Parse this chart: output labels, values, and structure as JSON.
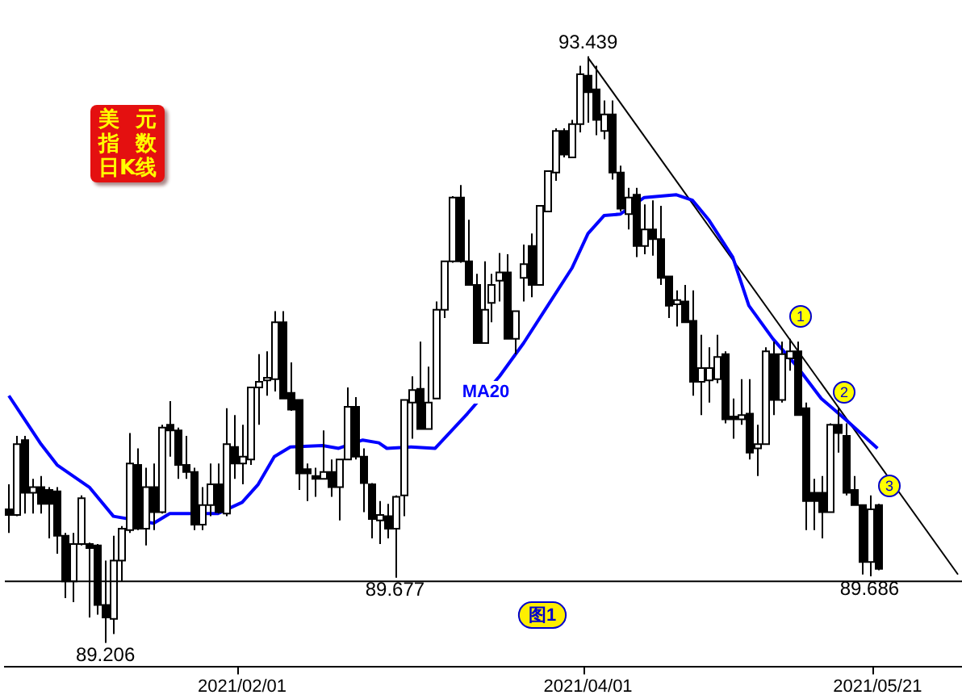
{
  "chart_data": {
    "type": "candlestick",
    "title": "美元指数日K线",
    "categories": [
      null,
      null,
      null,
      null,
      null,
      null,
      null,
      null,
      null,
      null,
      null,
      null,
      null,
      null,
      null,
      null,
      null,
      null,
      null,
      null,
      null,
      null,
      null,
      null,
      null,
      null,
      null,
      null,
      null,
      "2021/02/01",
      null,
      null,
      null,
      null,
      null,
      null,
      null,
      null,
      null,
      null,
      null,
      null,
      null,
      null,
      null,
      null,
      null,
      null,
      null,
      null,
      null,
      null,
      null,
      null,
      null,
      null,
      null,
      null,
      null,
      null,
      null,
      null,
      null,
      null,
      null,
      null,
      null,
      null,
      null,
      null,
      null,
      null,
      "2021/04/01",
      null,
      null,
      null,
      null,
      null,
      null,
      null,
      null,
      null,
      null,
      null,
      null,
      null,
      null,
      null,
      null,
      null,
      null,
      null,
      null,
      null,
      null,
      null,
      null,
      null,
      null,
      null,
      null,
      null,
      null,
      null,
      null,
      null,
      null,
      null,
      "2021/05/21",
      null,
      null,
      null,
      null,
      null,
      null,
      null,
      null,
      null,
      null
    ],
    "ohlc": [
      [
        90.17,
        90.35,
        90.0,
        90.13
      ],
      [
        90.13,
        90.7,
        90.12,
        90.64
      ],
      [
        90.67,
        90.7,
        90.14,
        90.29
      ],
      [
        90.29,
        90.39,
        90.14,
        90.33
      ],
      [
        90.33,
        90.41,
        90.14,
        90.21
      ],
      [
        90.31,
        90.33,
        89.96,
        90.21
      ],
      [
        90.3,
        90.33,
        89.85,
        89.98
      ],
      [
        89.98,
        90.0,
        89.53,
        89.65
      ],
      [
        89.65,
        90.0,
        89.5,
        89.92
      ],
      [
        89.92,
        90.27,
        89.91,
        90.25
      ],
      [
        89.92,
        89.93,
        89.39,
        89.89
      ],
      [
        89.91,
        89.92,
        89.41,
        89.48
      ],
      [
        89.48,
        89.8,
        89.206,
        89.39
      ],
      [
        89.38,
        89.98,
        89.27,
        89.8
      ],
      [
        89.8,
        90.05,
        89.65,
        90.03
      ],
      [
        90.02,
        90.72,
        90.0,
        90.5
      ],
      [
        90.49,
        90.61,
        90.02,
        90.03
      ],
      [
        90.03,
        90.47,
        89.91,
        90.33
      ],
      [
        90.33,
        90.5,
        90.02,
        90.15
      ],
      [
        90.15,
        90.78,
        90.14,
        90.76
      ],
      [
        90.78,
        90.95,
        90.55,
        90.74
      ],
      [
        90.74,
        90.76,
        90.39,
        90.49
      ],
      [
        90.49,
        90.7,
        90.39,
        90.44
      ],
      [
        90.44,
        90.47,
        90.02,
        90.06
      ],
      [
        90.06,
        90.33,
        90.02,
        90.2
      ],
      [
        90.2,
        90.5,
        90.12,
        90.35
      ],
      [
        90.35,
        90.5,
        90.14,
        90.15
      ],
      [
        90.14,
        90.9,
        90.12,
        90.64
      ],
      [
        90.62,
        90.85,
        90.39,
        90.5
      ],
      [
        90.5,
        90.78,
        90.35,
        90.55
      ],
      [
        90.53,
        91.05,
        90.49,
        91.05
      ],
      [
        91.05,
        91.29,
        90.78,
        91.09
      ],
      [
        91.1,
        91.31,
        90.99,
        91.12
      ],
      [
        91.11,
        91.6,
        91.02,
        91.52
      ],
      [
        91.52,
        91.6,
        90.97,
        90.97
      ],
      [
        91.01,
        91.23,
        90.88,
        90.89
      ],
      [
        90.96,
        90.96,
        90.31,
        90.43
      ],
      [
        90.46,
        90.5,
        90.23,
        90.43
      ],
      [
        90.41,
        90.47,
        90.26,
        90.39
      ],
      [
        90.39,
        90.74,
        90.39,
        90.44
      ],
      [
        90.44,
        90.53,
        90.26,
        90.33
      ],
      [
        90.33,
        90.53,
        90.09,
        90.53
      ],
      [
        90.53,
        91.05,
        90.53,
        90.91
      ],
      [
        90.91,
        90.98,
        90.53,
        90.55
      ],
      [
        90.55,
        90.61,
        90.15,
        90.36
      ],
      [
        90.35,
        90.36,
        89.96,
        90.1
      ],
      [
        90.09,
        90.23,
        89.92,
        90.13
      ],
      [
        90.12,
        90.21,
        89.96,
        90.03
      ],
      [
        90.03,
        90.27,
        89.677,
        90.26
      ],
      [
        90.27,
        90.96,
        90.12,
        90.96
      ],
      [
        90.94,
        91.13,
        90.68,
        91.03
      ],
      [
        91.04,
        91.38,
        90.75,
        90.75
      ],
      [
        90.75,
        91.2,
        90.75,
        90.94
      ],
      [
        90.97,
        91.67,
        90.97,
        91.61
      ],
      [
        91.61,
        91.96,
        91.55,
        91.96
      ],
      [
        91.96,
        92.43,
        91.95,
        92.42
      ],
      [
        92.42,
        92.51,
        91.95,
        91.96
      ],
      [
        91.96,
        92.26,
        91.79,
        91.79
      ],
      [
        91.79,
        91.87,
        91.37,
        91.37
      ],
      [
        91.37,
        91.96,
        91.37,
        91.61
      ],
      [
        91.66,
        91.87,
        91.52,
        91.79
      ],
      [
        91.82,
        92.02,
        91.67,
        91.88
      ],
      [
        91.88,
        92.01,
        91.4,
        91.4
      ],
      [
        91.4,
        91.6,
        91.29,
        91.6
      ],
      [
        91.84,
        92.08,
        91.67,
        91.94
      ],
      [
        92.07,
        92.16,
        91.7,
        91.79
      ],
      [
        91.79,
        92.36,
        91.79,
        92.36
      ],
      [
        92.32,
        92.61,
        92.32,
        92.61
      ],
      [
        92.6,
        92.92,
        92.54,
        92.9
      ],
      [
        92.9,
        92.92,
        92.71,
        92.73
      ],
      [
        92.71,
        92.98,
        92.71,
        92.95
      ],
      [
        92.95,
        93.37,
        92.89,
        93.31
      ],
      [
        93.3,
        93.439,
        92.96,
        93.18
      ],
      [
        93.2,
        93.37,
        92.87,
        92.98
      ],
      [
        92.9,
        93.12,
        92.84,
        93.02
      ],
      [
        93.02,
        93.12,
        92.55,
        92.6
      ],
      [
        92.6,
        92.65,
        92.32,
        92.34
      ],
      [
        92.3,
        92.49,
        92.19,
        92.42
      ],
      [
        92.44,
        92.49,
        91.99,
        92.07
      ],
      [
        92.07,
        92.37,
        92.01,
        92.19
      ],
      [
        92.19,
        92.4,
        92.0,
        92.12
      ],
      [
        92.12,
        92.36,
        91.79,
        91.84
      ],
      [
        91.85,
        91.85,
        91.55,
        91.64
      ],
      [
        91.65,
        91.75,
        91.49,
        91.68
      ],
      [
        91.67,
        91.79,
        91.52,
        91.52
      ],
      [
        91.53,
        91.75,
        90.99,
        91.09
      ],
      [
        91.09,
        91.43,
        90.85,
        91.19
      ],
      [
        91.1,
        91.34,
        90.94,
        91.19
      ],
      [
        91.11,
        91.43,
        91.08,
        91.27
      ],
      [
        91.29,
        91.31,
        90.79,
        90.82
      ],
      [
        90.84,
        90.97,
        90.68,
        90.82
      ],
      [
        90.82,
        91.11,
        90.78,
        90.85
      ],
      [
        90.86,
        91.11,
        90.53,
        90.58
      ],
      [
        90.61,
        90.78,
        90.41,
        90.64
      ],
      [
        90.64,
        91.34,
        90.64,
        91.31
      ],
      [
        91.29,
        91.38,
        90.85,
        90.96
      ],
      [
        90.96,
        91.38,
        90.94,
        91.29
      ],
      [
        91.26,
        91.4,
        91.17,
        91.31
      ],
      [
        91.31,
        91.38,
        90.85,
        90.85
      ],
      [
        90.9,
        90.94,
        90.02,
        90.23
      ],
      [
        90.29,
        90.39,
        90.02,
        90.23
      ],
      [
        90.29,
        90.41,
        89.96,
        90.15
      ],
      [
        90.15,
        90.79,
        90.15,
        90.78
      ],
      [
        90.78,
        90.9,
        90.58,
        90.72
      ],
      [
        90.7,
        90.79,
        90.27,
        90.29
      ],
      [
        90.31,
        90.41,
        90.2,
        90.2
      ],
      [
        90.2,
        90.2,
        89.7,
        89.79
      ],
      [
        89.79,
        90.27,
        89.686,
        90.17
      ],
      [
        90.2,
        90.21,
        89.73,
        89.74
      ],
      null,
      null,
      null,
      null,
      null,
      null,
      null,
      null,
      null,
      null
    ],
    "series": [
      {
        "type": "line",
        "name": "MA20",
        "color": "#0000ff",
        "values": [
          90.99,
          null,
          null,
          null,
          90.64,
          null,
          90.49,
          null,
          null,
          null,
          90.33,
          null,
          null,
          90.12,
          null,
          null,
          null,
          null,
          90.07,
          null,
          90.14,
          null,
          null,
          null,
          null,
          null,
          90.14,
          null,
          null,
          90.22,
          null,
          90.35,
          null,
          90.55,
          null,
          90.62,
          null,
          null,
          null,
          90.63,
          null,
          90.61,
          null,
          null,
          90.67,
          null,
          90.65,
          90.61,
          null,
          null,
          90.62,
          null,
          null,
          90.61,
          null,
          null,
          null,
          90.86,
          null,
          null,
          null,
          91.13,
          null,
          null,
          91.37,
          null,
          null,
          91.64,
          null,
          null,
          91.91,
          null,
          92.16,
          null,
          92.29,
          null,
          92.3,
          null,
          null,
          92.42,
          null,
          null,
          null,
          92.44,
          null,
          92.4,
          null,
          92.26,
          null,
          null,
          91.99,
          null,
          91.64,
          null,
          null,
          91.4,
          null,
          null,
          91.2,
          null,
          null,
          90.97,
          null,
          null,
          90.82,
          null,
          null,
          null,
          90.61,
          null,
          null,
          null,
          null,
          null,
          null,
          null,
          null,
          null,
          null
        ]
      },
      {
        "type": "line",
        "color": "#000000",
        "values": [
          null,
          null,
          null,
          null,
          null,
          null,
          null,
          null,
          null,
          null,
          null,
          null,
          null,
          null,
          null,
          null,
          null,
          null,
          null,
          null,
          null,
          null,
          null,
          null,
          null,
          null,
          null,
          null,
          null,
          null,
          null,
          null,
          null,
          null,
          null,
          null,
          null,
          null,
          null,
          null,
          null,
          null,
          null,
          null,
          null,
          null,
          null,
          null,
          null,
          null,
          null,
          null,
          null,
          null,
          null,
          null,
          null,
          null,
          null,
          null,
          null,
          null,
          null,
          null,
          null,
          null,
          null,
          null,
          null,
          null,
          null,
          null,
          93.43,
          null,
          null,
          null,
          null,
          null,
          null,
          null,
          null,
          null,
          null,
          null,
          null,
          null,
          null,
          null,
          null,
          null,
          null,
          null,
          null,
          null,
          null,
          null,
          null,
          null,
          null,
          null,
          null,
          null,
          null,
          null,
          null,
          null,
          null,
          null,
          null,
          null,
          null,
          null,
          null,
          null,
          null,
          null,
          null,
          null,
          89.7
        ]
      }
    ],
    "ref_lines": [
      {
        "axis": "y",
        "value": 89.65,
        "color": "#000000"
      }
    ],
    "annotations": [
      {
        "text": "93.439",
        "y": 93.439
      },
      {
        "text": "89.206",
        "y": 89.206
      },
      {
        "text": "89.677",
        "y": 89.677
      },
      {
        "text": "89.686",
        "y": 89.686
      },
      "1",
      "2",
      "3",
      "图1"
    ],
    "legend": false,
    "grid": false
  }
}
